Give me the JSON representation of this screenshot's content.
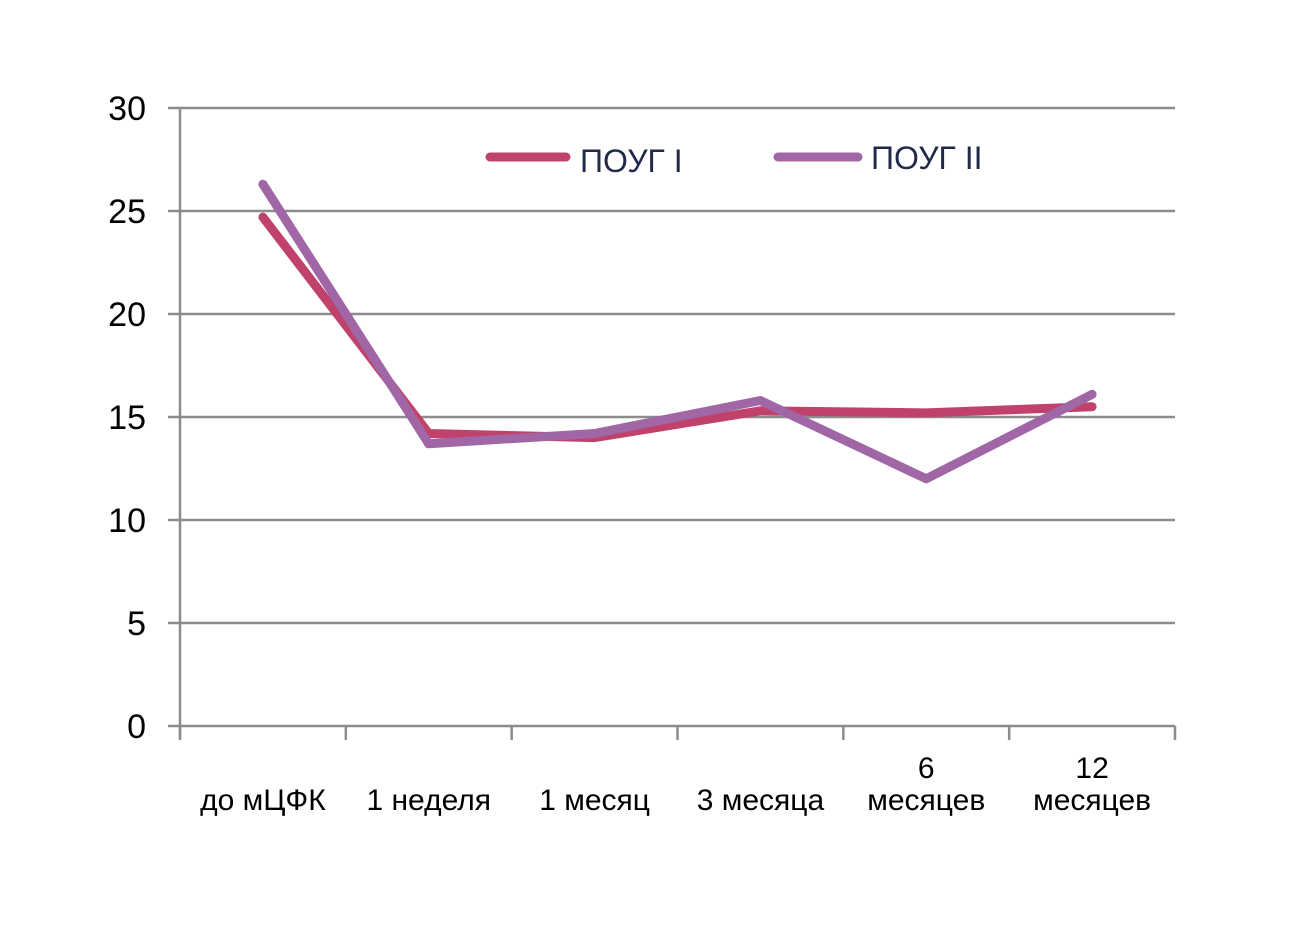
{
  "chart_data": {
    "type": "line",
    "categories": [
      [
        "до мЦФК"
      ],
      [
        "1 неделя"
      ],
      [
        "1 месяц"
      ],
      [
        "3 месяца"
      ],
      [
        "6",
        "месяцев"
      ],
      [
        "12",
        "месяцев"
      ]
    ],
    "series": [
      {
        "name": "ПОУГ I",
        "values": [
          24.7,
          14.2,
          14.0,
          15.3,
          15.2,
          15.5
        ],
        "color": "#c0426a"
      },
      {
        "name": "ПОУГ II",
        "values": [
          26.3,
          13.7,
          14.2,
          15.8,
          12.0,
          16.1
        ],
        "color": "#a066a6"
      }
    ],
    "ylim": [
      0,
      30
    ],
    "yticks": [
      0,
      5,
      10,
      15,
      20,
      25,
      30
    ],
    "grid": true,
    "legend_position": "top-right",
    "title": "",
    "xlabel": "",
    "ylabel": ""
  }
}
